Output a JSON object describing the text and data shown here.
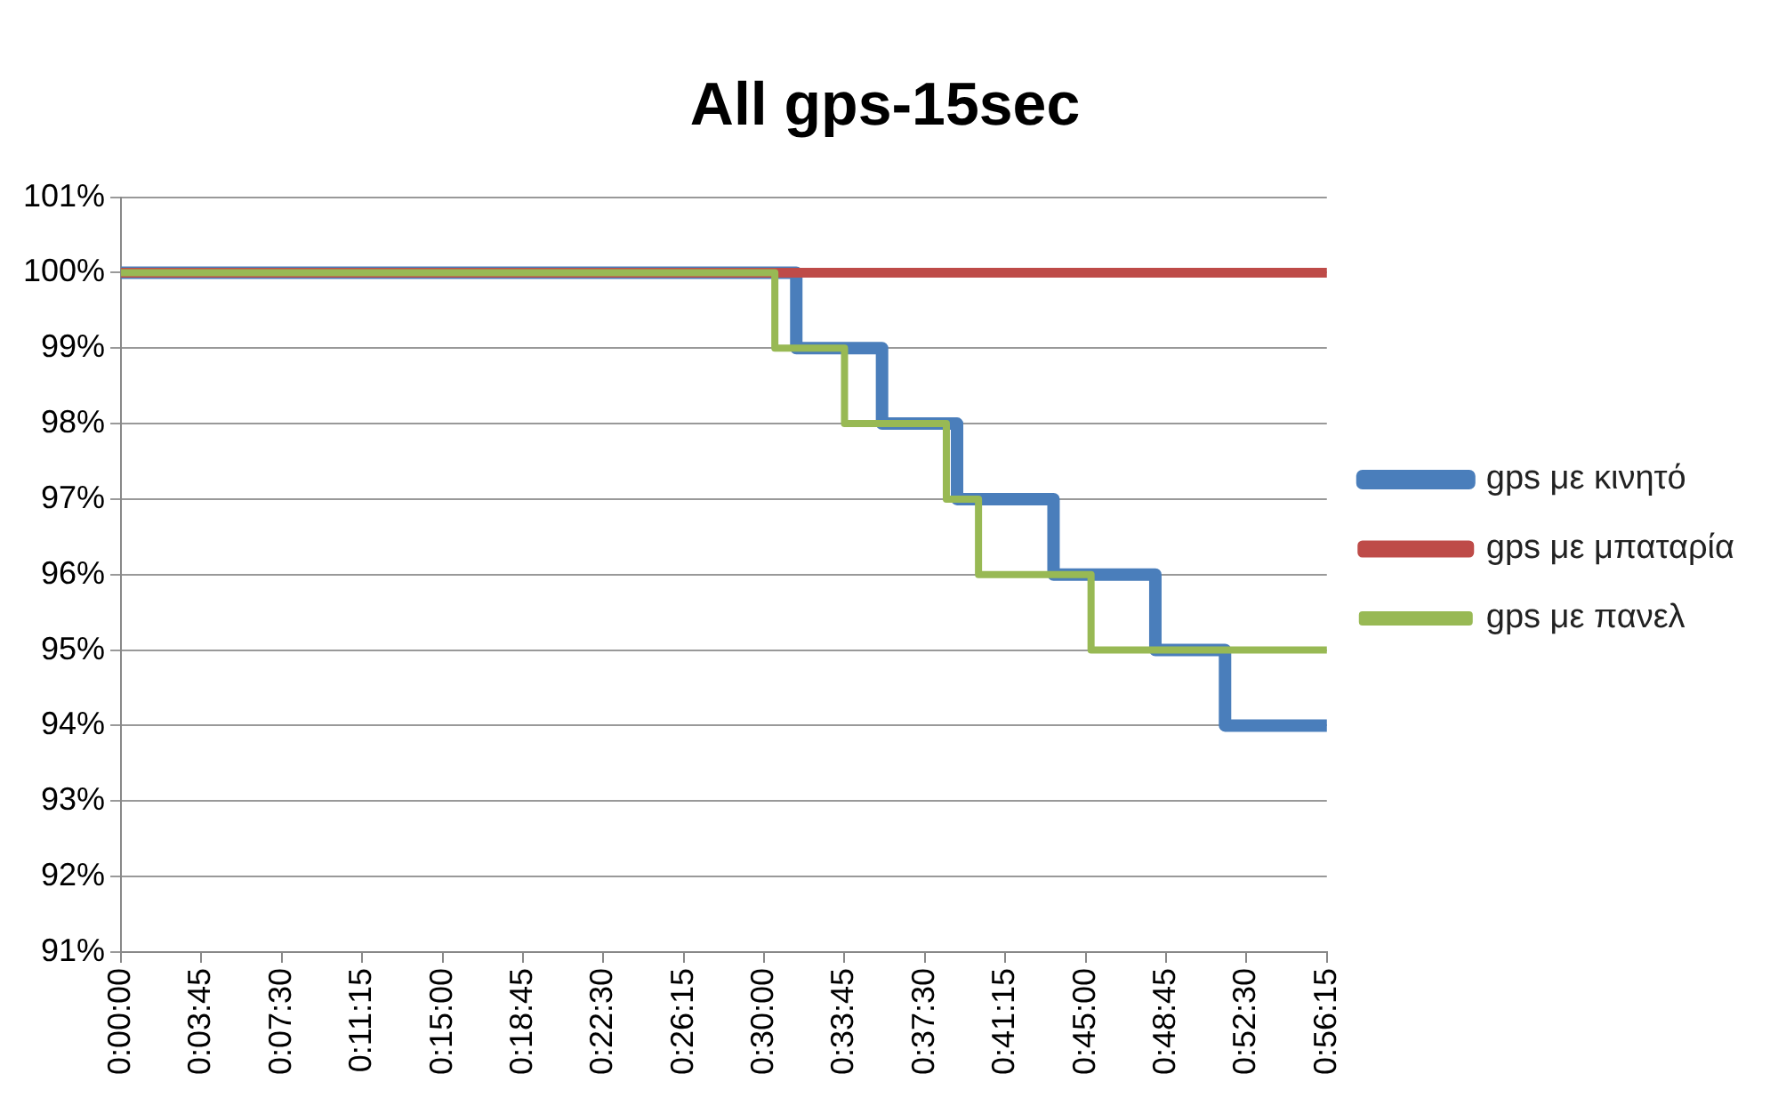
{
  "chart_data": {
    "type": "step",
    "title": "All gps-15sec",
    "series": [
      {
        "name": "gps με κινητό",
        "color": "#4a7ebb",
        "x": [
          0,
          0.525,
          0.591667,
          0.65,
          0.725,
          0.804167,
          0.858333,
          0.9375
        ],
        "values": [
          100,
          99,
          98,
          97,
          96,
          95,
          94,
          94
        ]
      },
      {
        "name": "gps με μπαταρία",
        "color": "#be4b48",
        "x": [
          0,
          0.9375
        ],
        "values": [
          100,
          100
        ]
      },
      {
        "name": "gps με πανελ",
        "color": "#98b954",
        "x": [
          0,
          0.508333,
          0.5625,
          0.641667,
          0.666667,
          0.754167,
          0.9375
        ],
        "values": [
          100,
          99,
          98,
          97,
          96,
          95,
          95
        ]
      }
    ],
    "xlim": [
      0,
      0.9375
    ],
    "xticks": [
      {
        "value": 0,
        "label": "0:00:00"
      },
      {
        "value": 0.0625,
        "label": "0:03:45"
      },
      {
        "value": 0.125,
        "label": "0:07:30"
      },
      {
        "value": 0.1875,
        "label": "0:11:15"
      },
      {
        "value": 0.25,
        "label": "0:15:00"
      },
      {
        "value": 0.3125,
        "label": "0:18:45"
      },
      {
        "value": 0.375,
        "label": "0:22:30"
      },
      {
        "value": 0.4375,
        "label": "0:26:15"
      },
      {
        "value": 0.5,
        "label": "0:30:00"
      },
      {
        "value": 0.5625,
        "label": "0:33:45"
      },
      {
        "value": 0.625,
        "label": "0:37:30"
      },
      {
        "value": 0.6875,
        "label": "0:41:15"
      },
      {
        "value": 0.75,
        "label": "0:45:00"
      },
      {
        "value": 0.8125,
        "label": "0:48:45"
      },
      {
        "value": 0.875,
        "label": "0:52:30"
      },
      {
        "value": 0.9375,
        "label": "0:56:15"
      }
    ],
    "ylim": [
      91,
      101
    ],
    "yticks": [
      {
        "value": 91,
        "label": "91%"
      },
      {
        "value": 92,
        "label": "92%"
      },
      {
        "value": 93,
        "label": "93%"
      },
      {
        "value": 94,
        "label": "94%"
      },
      {
        "value": 95,
        "label": "95%"
      },
      {
        "value": 96,
        "label": "96%"
      },
      {
        "value": 97,
        "label": "97%"
      },
      {
        "value": 98,
        "label": "98%"
      },
      {
        "value": 99,
        "label": "99%"
      },
      {
        "value": 100,
        "label": "100%"
      },
      {
        "value": 101,
        "label": "101%"
      }
    ],
    "grid": "y",
    "legend": "right",
    "marker": "none",
    "line_style": "solid"
  }
}
